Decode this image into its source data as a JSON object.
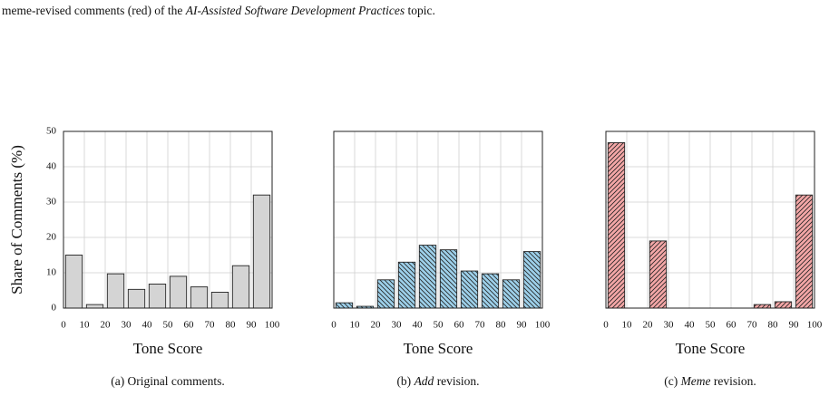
{
  "caption": [
    "meme-revised comments (red) of the ",
    "AI-Assisted Software Development Practices",
    " topic."
  ],
  "chart_data": [
    {
      "type": "histogram",
      "xlabel": "Tone Score",
      "ylabel": "Share of Comments (%)",
      "subcaption": [
        "(a) Original comments."
      ],
      "bins": [
        0,
        10,
        20,
        30,
        40,
        50,
        60,
        70,
        80,
        90,
        100
      ],
      "values": [
        15,
        1,
        9.7,
        5.3,
        6.8,
        9,
        6,
        4.5,
        12,
        32
      ],
      "color": "#d4d4d4",
      "xlim": [
        0,
        100
      ],
      "ylim": [
        0,
        50
      ],
      "xticks": [
        0,
        10,
        20,
        30,
        40,
        50,
        60,
        70,
        80,
        90,
        100
      ],
      "yticks": [
        0,
        10,
        20,
        30,
        40,
        50
      ],
      "yticklabels": true,
      "grid": true
    },
    {
      "type": "histogram",
      "xlabel": "Tone Score",
      "subcaption": [
        "(b) ",
        "Add",
        " revision."
      ],
      "bins": [
        0,
        10,
        20,
        30,
        40,
        50,
        60,
        70,
        80,
        90,
        100
      ],
      "values": [
        1.5,
        0.5,
        8,
        13,
        17.8,
        16.5,
        10.5,
        9.7,
        8,
        16
      ],
      "color": "#9dd0ea",
      "hatch": "\\",
      "xlim": [
        0,
        100
      ],
      "ylim": [
        0,
        50
      ],
      "xticks": [
        0,
        10,
        20,
        30,
        40,
        50,
        60,
        70,
        80,
        90,
        100
      ],
      "yticks": [
        0,
        10,
        20,
        30,
        40,
        50
      ],
      "yticklabels": false,
      "grid": true
    },
    {
      "type": "histogram",
      "xlabel": "Tone Score",
      "subcaption": [
        "(c) ",
        "Meme",
        " revision."
      ],
      "bins": [
        0,
        10,
        20,
        30,
        40,
        50,
        60,
        70,
        80,
        90,
        100
      ],
      "values": [
        46.8,
        0,
        19,
        0,
        0,
        0,
        0,
        1,
        1.8,
        32
      ],
      "color": "#f4a7a7",
      "hatch": "/",
      "xlim": [
        0,
        100
      ],
      "ylim": [
        0,
        50
      ],
      "xticks": [
        0,
        10,
        20,
        30,
        40,
        50,
        60,
        70,
        80,
        90,
        100
      ],
      "yticks": [
        0,
        10,
        20,
        30,
        40,
        50
      ],
      "yticklabels": false,
      "grid": true
    }
  ]
}
